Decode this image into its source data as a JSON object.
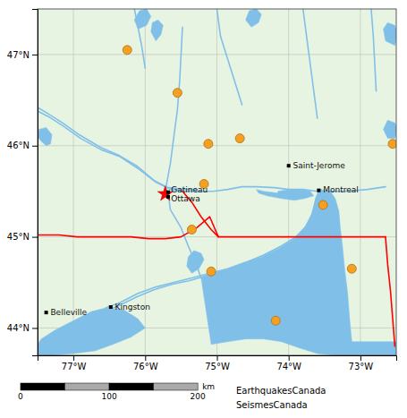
{
  "chart_data": {
    "type": "map",
    "color": "#e8f4e2",
    "xlim": [
      -77.5,
      -72.5
    ],
    "ylim": [
      43.7,
      47.5
    ],
    "xticks": [
      {
        "value": -77,
        "label": "77°W"
      },
      {
        "value": -76,
        "label": "76°W"
      },
      {
        "value": -75,
        "label": "75°W"
      },
      {
        "value": -74,
        "label": "74°W"
      },
      {
        "value": -73,
        "label": "73°W"
      }
    ],
    "yticks": [
      {
        "value": 44,
        "label": "44°N"
      },
      {
        "value": 45,
        "label": "45°N"
      },
      {
        "value": 46,
        "label": "46°N"
      },
      {
        "value": 47,
        "label": "47°N"
      }
    ],
    "grid": true,
    "series": [
      {
        "type": "area",
        "color": "#80c0e8",
        "x": [
          -77.5,
          -77.3,
          -77.0,
          -76.7,
          -76.45,
          -76.2,
          -76.0,
          -76.1,
          -76.3,
          -76.55,
          -76.75,
          -77.0,
          -77.25,
          -77.45,
          -77.5
        ],
        "y": [
          43.7,
          43.7,
          43.72,
          43.75,
          43.82,
          43.9,
          44.0,
          44.1,
          44.2,
          44.22,
          44.18,
          44.08,
          43.98,
          43.88,
          43.82
        ]
      },
      {
        "type": "area",
        "color": "#80c0e8",
        "x": [
          -75.22,
          -75.05,
          -74.85,
          -74.6,
          -74.38,
          -74.12,
          -73.92,
          -73.78,
          -73.68,
          -73.62,
          -73.58,
          -73.55,
          -73.42,
          -73.35,
          -73.3,
          -73.28,
          -73.25,
          -73.22,
          -73.18,
          -73.15,
          -73.12,
          -72.5,
          -72.5,
          -73.35,
          -73.6,
          -73.85,
          -74.1,
          -74.35,
          -74.6,
          -74.85,
          -75.08,
          -75.22
        ],
        "y": [
          44.55,
          44.6,
          44.65,
          44.72,
          44.78,
          44.88,
          44.98,
          45.1,
          45.25,
          45.42,
          45.5,
          45.52,
          45.5,
          45.42,
          45.28,
          45.1,
          44.9,
          44.65,
          44.4,
          44.1,
          43.85,
          43.85,
          43.7,
          43.7,
          43.72,
          43.78,
          43.85,
          43.88,
          43.88,
          43.85,
          43.82,
          44.55
        ]
      },
      {
        "type": "area",
        "color": "#80c0e8",
        "x": [
          -74.45,
          -74.35,
          -74.15,
          -74.0,
          -73.85,
          -73.7,
          -73.65,
          -73.78,
          -73.92,
          -74.1,
          -74.3,
          -74.42
        ],
        "y": [
          45.52,
          45.5,
          45.48,
          45.5,
          45.52,
          45.5,
          45.45,
          45.42,
          45.4,
          45.42,
          45.45,
          45.48
        ]
      },
      {
        "type": "area",
        "color": "#80c0e8",
        "x": [
          -74.15,
          -74.0,
          -73.85,
          -73.72,
          -73.72,
          -73.85,
          -74.0,
          -74.15
        ],
        "y": [
          45.5,
          45.52,
          45.52,
          45.5,
          45.45,
          45.44,
          45.44,
          45.46
        ]
      },
      {
        "type": "area",
        "color": "#80c0e8",
        "x": [
          -73.52,
          -73.45,
          -73.4,
          -73.38,
          -73.4,
          -73.45,
          -73.52,
          -73.58,
          -73.62,
          -73.6,
          -73.55,
          -73.52
        ],
        "y": [
          44.72,
          44.78,
          44.88,
          45.0,
          45.1,
          45.2,
          45.28,
          45.2,
          45.08,
          44.95,
          44.82,
          44.72
        ]
      },
      {
        "type": "area",
        "color": "#80c0e8",
        "x": [
          -76.1,
          -75.98,
          -75.92,
          -75.98,
          -76.08,
          -76.15
        ],
        "y": [
          47.28,
          47.32,
          47.42,
          47.5,
          47.48,
          47.38
        ]
      },
      {
        "type": "area",
        "color": "#80c0e8",
        "x": [
          -75.85,
          -75.78,
          -75.75,
          -75.82,
          -75.9,
          -75.92
        ],
        "y": [
          47.15,
          47.22,
          47.32,
          47.38,
          47.35,
          47.25
        ]
      },
      {
        "type": "area",
        "color": "#80c0e8",
        "x": [
          -74.52,
          -74.42,
          -74.38,
          -74.45,
          -74.55,
          -74.6
        ],
        "y": [
          47.3,
          47.35,
          47.44,
          47.5,
          47.48,
          47.38
        ]
      },
      {
        "type": "area",
        "color": "#80c0e8",
        "x": [
          -72.52,
          -72.48,
          -72.52,
          -72.62,
          -72.68,
          -72.65
        ],
        "y": [
          47.1,
          47.22,
          47.32,
          47.35,
          47.28,
          47.15
        ]
      },
      {
        "type": "area",
        "color": "#80c0e8",
        "x": [
          -72.52,
          -72.48,
          -72.52,
          -72.62,
          -72.68,
          -72.62
        ],
        "y": [
          46.08,
          46.18,
          46.25,
          46.28,
          46.18,
          46.08
        ]
      },
      {
        "type": "area",
        "color": "#80c0e8",
        "x": [
          -77.38,
          -77.45,
          -77.5,
          -77.48,
          -77.38,
          -77.3,
          -77.32
        ],
        "y": [
          46.0,
          46.05,
          46.1,
          46.18,
          46.2,
          46.12,
          46.02
        ]
      },
      {
        "type": "area",
        "color": "#80c0e8",
        "x": [
          -75.35,
          -75.25,
          -75.18,
          -75.22,
          -75.32,
          -75.4,
          -75.42
        ],
        "y": [
          44.6,
          44.65,
          44.75,
          44.82,
          44.85,
          44.78,
          44.68
        ]
      },
      {
        "type": "line",
        "color": "#80c0e8",
        "x": [
          -77.5,
          -77.35,
          -77.15,
          -76.9,
          -76.6,
          -76.35,
          -76.1,
          -75.85,
          -75.65,
          -75.45,
          -75.25,
          -75.05,
          -74.85,
          -74.65,
          -74.45,
          -74.2,
          -74.0,
          -73.8,
          -73.6,
          -73.4,
          -73.2,
          -72.9,
          -72.65
        ],
        "y": [
          46.38,
          46.32,
          46.22,
          46.08,
          45.95,
          45.88,
          45.75,
          45.6,
          45.52,
          45.5,
          45.5,
          45.5,
          45.52,
          45.55,
          45.55,
          45.54,
          45.52,
          45.52,
          45.5,
          45.5,
          45.5,
          45.52,
          45.55
        ]
      },
      {
        "type": "line",
        "color": "#80c0e8",
        "x": [
          -77.5,
          -77.35,
          -77.15,
          -76.92,
          -76.62,
          -76.38,
          -76.12,
          -75.88,
          -75.68,
          -75.48,
          -75.28
        ],
        "y": [
          46.42,
          46.35,
          46.25,
          46.12,
          45.98,
          45.9,
          45.78,
          45.62,
          45.54,
          45.52,
          45.52
        ]
      },
      {
        "type": "line",
        "color": "#80c0e8",
        "x": [
          -76.55,
          -76.35,
          -76.1,
          -75.85,
          -75.6,
          -75.35,
          -75.1,
          -74.85,
          -74.6,
          -74.35,
          -74.1,
          -73.9,
          -73.75,
          -73.65,
          -73.6,
          -73.55
        ],
        "y": [
          44.22,
          44.28,
          44.38,
          44.45,
          44.5,
          44.55,
          44.6,
          44.65,
          44.72,
          44.8,
          44.9,
          45.0,
          45.12,
          45.28,
          45.45,
          45.52
        ]
      },
      {
        "type": "line",
        "color": "#80c0e8",
        "x": [
          -76.58,
          -76.38,
          -76.12,
          -75.88,
          -75.62,
          -75.38,
          -75.12,
          -74.88,
          -74.62,
          -74.38,
          -74.12,
          -73.92,
          -73.78,
          -73.68,
          -73.62,
          -73.58
        ],
        "y": [
          44.18,
          44.24,
          44.34,
          44.42,
          44.48,
          44.52,
          44.58,
          44.62,
          44.68,
          44.75,
          44.85,
          44.95,
          45.08,
          45.22,
          45.42,
          45.5
        ]
      },
      {
        "type": "line",
        "color": "#80c0e8",
        "x": [
          -75.68,
          -75.65,
          -75.5,
          -75.4,
          -75.3,
          -75.22
        ],
        "y": [
          45.5,
          45.3,
          45.1,
          44.9,
          44.72,
          44.55
        ]
      },
      {
        "type": "line",
        "color": "#80c0e8",
        "x": [
          -75.72,
          -75.65,
          -75.6,
          -75.55,
          -75.52,
          -75.5,
          -75.48
        ],
        "y": [
          45.5,
          45.8,
          46.1,
          46.4,
          46.7,
          47.0,
          47.3
        ]
      },
      {
        "type": "line",
        "color": "#80c0e8",
        "x": [
          -73.55,
          -73.52,
          -73.5,
          -73.48,
          -73.45,
          -73.42,
          -73.38,
          -73.35
        ],
        "y": [
          45.5,
          45.3,
          45.1,
          44.85,
          44.6,
          44.35,
          44.1,
          43.9
        ]
      },
      {
        "type": "line",
        "color": "#80c0e8",
        "x": [
          -75.0,
          -74.95,
          -74.85,
          -74.75,
          -74.65
        ],
        "y": [
          47.5,
          47.2,
          46.95,
          46.7,
          46.45
        ]
      },
      {
        "type": "line",
        "color": "#80c0e8",
        "x": [
          -73.8,
          -73.75,
          -73.7,
          -73.65,
          -73.6
        ],
        "y": [
          47.5,
          47.2,
          46.9,
          46.6,
          46.3
        ]
      },
      {
        "type": "line",
        "color": "#80c0e8",
        "x": [
          -72.85,
          -72.82,
          -72.8,
          -72.78
        ],
        "y": [
          47.5,
          47.2,
          46.9,
          46.6
        ]
      },
      {
        "type": "line",
        "color": "#80c0e8",
        "x": [
          -76.15,
          -76.1,
          -76.05,
          -76.0
        ],
        "y": [
          47.5,
          47.3,
          47.1,
          46.85
        ]
      },
      {
        "type": "line",
        "color": "red",
        "x": [
          -77.5,
          -77.2,
          -76.95,
          -76.7,
          -76.45,
          -76.2,
          -75.95,
          -75.72,
          -75.5,
          -75.28,
          -75.1,
          -74.98,
          -74.72,
          -74.45,
          -74.2,
          -73.95,
          -73.7,
          -73.45,
          -73.2,
          -72.95,
          -72.65
        ],
        "y": [
          45.02,
          45.02,
          45.0,
          45.0,
          45.0,
          45.0,
          44.98,
          44.98,
          45.0,
          45.1,
          45.22,
          45.0,
          45.0,
          45.0,
          45.0,
          45.0,
          45.0,
          45.0,
          45.0,
          45.0,
          45.0
        ]
      },
      {
        "type": "line",
        "color": "red",
        "x": [
          -72.65,
          -72.62,
          -72.58,
          -72.55,
          -72.52
        ],
        "y": [
          45.0,
          44.7,
          44.4,
          44.1,
          43.8
        ]
      },
      {
        "type": "line",
        "color": "red",
        "x": [
          -75.48,
          -75.35,
          -75.22,
          -75.08,
          -74.98
        ],
        "y": [
          45.5,
          45.38,
          45.22,
          45.08,
          45.0
        ]
      },
      {
        "type": "scatter",
        "color": "#f5a020",
        "marker": "circle",
        "x": [
          -76.25,
          -75.55,
          -75.12,
          -74.68,
          -72.55,
          -75.18,
          -75.35,
          -75.08,
          -73.52,
          -73.12,
          -74.18
        ],
        "y": [
          47.05,
          46.58,
          46.02,
          46.08,
          46.02,
          45.58,
          45.08,
          44.62,
          45.35,
          44.65,
          44.08
        ]
      },
      {
        "type": "scatter",
        "color": "red",
        "marker": "star",
        "x": [
          -75.72
        ],
        "y": [
          45.47
        ]
      },
      {
        "type": "scatter",
        "color": "black",
        "marker": "square",
        "x": [
          -75.68,
          -75.68,
          -73.58,
          -74.0,
          -77.38,
          -76.48
        ],
        "y": [
          45.49,
          45.44,
          45.51,
          45.78,
          44.17,
          44.23
        ]
      }
    ],
    "annotations": [
      {
        "text": "Gatineau",
        "x": -75.64,
        "y": 45.515
      },
      {
        "text": "Ottawa",
        "x": -75.64,
        "y": 45.415
      },
      {
        "text": "Montreal",
        "x": -73.52,
        "y": 45.51
      },
      {
        "text": "Saint-Jerome",
        "x": -73.94,
        "y": 45.78
      },
      {
        "text": "Belleville",
        "x": -77.32,
        "y": 44.17
      },
      {
        "text": "Kingston",
        "x": -76.42,
        "y": 44.23
      }
    ],
    "scale_bar": {
      "label": "km",
      "xlim": [
        -5,
        215
      ],
      "ticks": [
        0,
        100,
        200
      ],
      "segments": [
        0,
        50,
        100,
        150,
        200
      ],
      "colors": [
        "black",
        "#aaaaaa",
        "black",
        "#aaaaaa"
      ]
    },
    "credits": [
      "EarthquakesCanada",
      "SeismesCanada"
    ]
  }
}
